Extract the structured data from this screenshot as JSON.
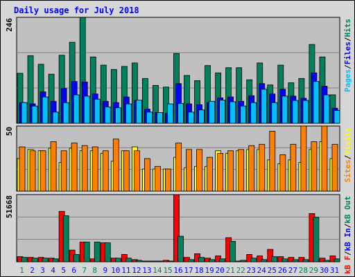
{
  "chart_data": [
    {
      "type": "bar",
      "title": "Daily usage for July 2018",
      "ylim": [
        0,
        246
      ],
      "yticks": [
        246
      ],
      "grid_divisions": 3,
      "legend_separator": "/",
      "legend_reversed": true,
      "series": [
        {
          "name": "Hits",
          "color": "#00805c",
          "values": [
            116,
            157,
            137,
            114,
            158,
            188,
            246,
            154,
            135,
            125,
            132,
            140,
            104,
            88,
            84,
            162,
            111,
            99,
            134,
            117,
            129,
            129,
            101,
            140,
            89,
            135,
            94,
            104,
            183,
            154,
            66
          ]
        },
        {
          "name": "Files",
          "color": "#0000ff",
          "values": [
            48,
            45,
            73,
            51,
            81,
            97,
            96,
            68,
            51,
            48,
            61,
            53,
            33,
            25,
            23,
            92,
            45,
            43,
            48,
            59,
            61,
            51,
            64,
            92,
            68,
            79,
            63,
            58,
            117,
            86,
            35
          ]
        },
        {
          "name": "Pages",
          "color": "#00c0ff",
          "values": [
            48,
            40,
            61,
            26,
            48,
            66,
            63,
            56,
            38,
            36,
            45,
            54,
            26,
            25,
            45,
            46,
            26,
            31,
            51,
            54,
            50,
            40,
            48,
            79,
            48,
            63,
            53,
            53,
            97,
            66,
            30
          ]
        }
      ]
    },
    {
      "type": "bar",
      "ylim": [
        0,
        50
      ],
      "yticks": [
        50
      ],
      "grid_divisions": 3,
      "legend_separator": "/",
      "legend_reversed": true,
      "series": [
        {
          "name": "Visits",
          "color": "#ffff00",
          "values": [
            25,
            32,
            31,
            33,
            22,
            33,
            31,
            31,
            29,
            23,
            31,
            34,
            17,
            17,
            17,
            26,
            18,
            19,
            19,
            31,
            29,
            31,
            32,
            32,
            24,
            21,
            24,
            22,
            32,
            38,
            25
          ]
        },
        {
          "name": "Sites",
          "color": "#ff8000",
          "values": [
            34,
            31,
            31,
            38,
            31,
            37,
            35,
            34,
            31,
            40,
            31,
            31,
            25,
            19,
            17,
            37,
            32,
            32,
            26,
            29,
            31,
            32,
            35,
            36,
            46,
            28,
            36,
            50,
            38,
            50,
            36
          ]
        }
      ]
    },
    {
      "type": "bar",
      "ylim": [
        0,
        51668
      ],
      "yticks": [
        51668
      ],
      "grid_divisions": 3,
      "legend_separator": "/",
      "legend_reversed": false,
      "categories": [
        "1",
        "2",
        "3",
        "4",
        "5",
        "6",
        "7",
        "8",
        "9",
        "10",
        "11",
        "12",
        "13",
        "14",
        "15",
        "16",
        "17",
        "18",
        "19",
        "20",
        "21",
        "22",
        "23",
        "24",
        "25",
        "26",
        "27",
        "28",
        "29",
        "30",
        "31"
      ],
      "category_colors": [
        "#00805c",
        "#0000ff",
        "#0000ff",
        "#0000ff",
        "#0000ff",
        "#0000ff",
        "#00805c",
        "#00805c",
        "#0000ff",
        "#0000ff",
        "#0000ff",
        "#0000ff",
        "#0000ff",
        "#00805c",
        "#00805c",
        "#0000ff",
        "#0000ff",
        "#0000ff",
        "#0000ff",
        "#0000ff",
        "#00805c",
        "#00805c",
        "#0000ff",
        "#0000ff",
        "#0000ff",
        "#0000ff",
        "#0000ff",
        "#00805c",
        "#00805c",
        "#0000ff",
        "#0000ff"
      ],
      "series": [
        {
          "name": "kB F",
          "color": "#ff0000",
          "values": [
            3931,
            3370,
            3370,
            2808,
            38750,
            8986,
            15163,
            2246,
            14602,
            2808,
            5616,
            1685,
            562,
            562,
            1123,
            51668,
            3370,
            6178,
            2808,
            4493,
            18533,
            562,
            5616,
            4493,
            9547,
            3931,
            3370,
            3370,
            37066,
            2808,
            4493
          ]
        },
        {
          "name": "kB In",
          "color": "#0000ff",
          "values": [
            0,
            0,
            0,
            0,
            0,
            0,
            0,
            0,
            0,
            0,
            0,
            0,
            0,
            0,
            0,
            0,
            0,
            0,
            0,
            0,
            0,
            0,
            0,
            0,
            0,
            0,
            0,
            0,
            0,
            0,
            0
          ]
        },
        {
          "name": "kB Out",
          "color": "#00805c",
          "values": [
            3370,
            2808,
            2808,
            2246,
            35381,
            5616,
            15163,
            15163,
            14602,
            2808,
            2808,
            1123,
            562,
            562,
            562,
            19656,
            1685,
            3370,
            1685,
            2246,
            15725,
            1123,
            2808,
            1685,
            3931,
            2246,
            1685,
            1685,
            34258,
            1123,
            2246
          ]
        }
      ]
    }
  ]
}
